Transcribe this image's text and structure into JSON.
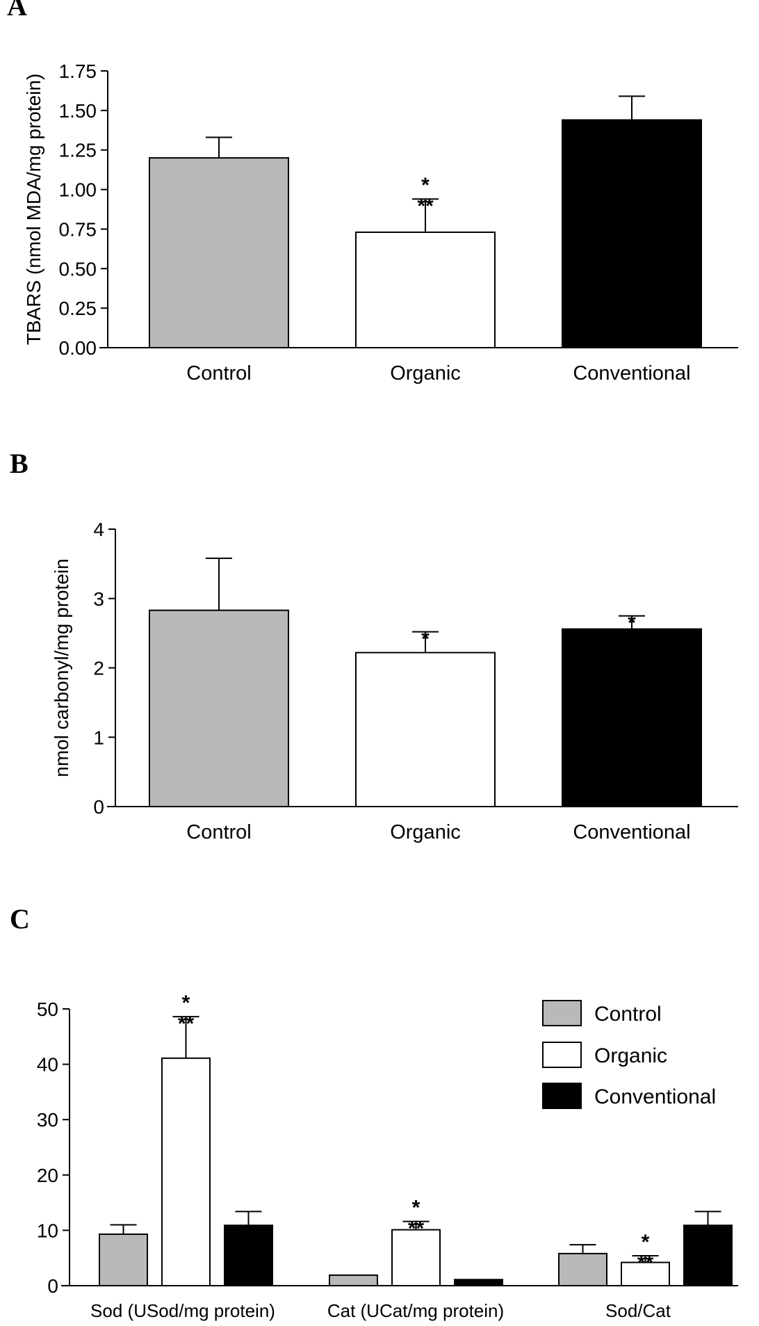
{
  "colors": {
    "Control": "#b9b9b9",
    "Organic": "#ffffff",
    "Conventional": "#000000",
    "axis": "#000000"
  },
  "chart_data": [
    {
      "panel": "A",
      "type": "bar",
      "ylabel": "TBARS (nmol MDA/mg protein)",
      "ylim": [
        0,
        1.75
      ],
      "yticks": [
        "0.00",
        "0.25",
        "0.50",
        "0.75",
        "1.00",
        "1.25",
        "1.50",
        "1.75"
      ],
      "categories": [
        "Control",
        "Organic",
        "Conventional"
      ],
      "values": [
        1.2,
        0.73,
        1.44
      ],
      "errors": [
        0.13,
        0.21,
        0.15
      ],
      "annotations": [
        [],
        [
          "*",
          "**"
        ],
        []
      ]
    },
    {
      "panel": "B",
      "type": "bar",
      "ylabel": "nmol carbonyl/mg protein",
      "ylim": [
        0,
        4
      ],
      "yticks": [
        "0",
        "1",
        "2",
        "3",
        "4"
      ],
      "categories": [
        "Control",
        "Organic",
        "Conventional"
      ],
      "values": [
        2.83,
        2.22,
        2.56
      ],
      "errors": [
        0.75,
        0.3,
        0.19
      ],
      "annotations": [
        [],
        [
          "*"
        ],
        [
          "*"
        ]
      ]
    },
    {
      "panel": "C",
      "type": "bar",
      "ylabel": "",
      "ylim": [
        0,
        50
      ],
      "yticks": [
        "0",
        "10",
        "20",
        "30",
        "40",
        "50"
      ],
      "categories": [
        "Sod (USod/mg protein)",
        "Cat (UCat/mg protein)",
        "Sod/Cat"
      ],
      "legend": {
        "placement": "top-right",
        "entries": [
          "Control",
          "Organic",
          "Conventional"
        ]
      },
      "series": [
        {
          "name": "Control",
          "values": [
            9.3,
            1.9,
            5.8
          ],
          "errors": [
            1.7,
            0,
            1.6
          ]
        },
        {
          "name": "Organic",
          "values": [
            41.1,
            10.1,
            4.2
          ],
          "errors": [
            7.5,
            1.5,
            1.2
          ]
        },
        {
          "name": "Conventional",
          "values": [
            10.9,
            1.1,
            10.9
          ],
          "errors": [
            2.5,
            0,
            2.5
          ]
        }
      ],
      "annotations": [
        [
          [],
          [
            "*",
            "**"
          ],
          []
        ],
        [
          [],
          [
            "*",
            "**"
          ],
          []
        ],
        [
          [],
          [
            "*",
            "**"
          ],
          []
        ]
      ]
    }
  ]
}
